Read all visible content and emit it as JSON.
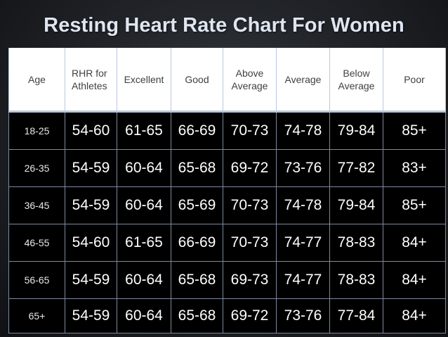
{
  "title": "Resting Heart Rate Chart For Women",
  "chart_data": {
    "type": "table",
    "title": "Resting Heart Rate Chart For Women",
    "columns": [
      "Age",
      "RHR for\nAthletes",
      "Excellent",
      "Good",
      "Above\nAverage",
      "Average",
      "Below\nAverage",
      "Poor"
    ],
    "rows": [
      [
        "18-25",
        "54-60",
        "61-65",
        "66-69",
        "70-73",
        "74-78",
        "79-84",
        "85+"
      ],
      [
        "26-35",
        "54-59",
        "60-64",
        "65-68",
        "69-72",
        "73-76",
        "77-82",
        "83+"
      ],
      [
        "36-45",
        "54-59",
        "60-64",
        "65-69",
        "70-73",
        "74-78",
        "79-84",
        "85+"
      ],
      [
        "46-55",
        "54-60",
        "61-65",
        "66-69",
        "70-73",
        "74-77",
        "78-83",
        "84+"
      ],
      [
        "56-65",
        "54-59",
        "60-64",
        "65-68",
        "69-73",
        "74-77",
        "78-83",
        "84+"
      ],
      [
        "65+",
        "54-59",
        "60-64",
        "65-68",
        "69-72",
        "73-76",
        "77-84",
        "84+"
      ]
    ],
    "colors": {
      "header_bg": "#ffffff",
      "header_text": "#404040",
      "body_bg": "#000000",
      "body_text": "#ffffff",
      "grid_line": "#b9c7dd"
    }
  }
}
